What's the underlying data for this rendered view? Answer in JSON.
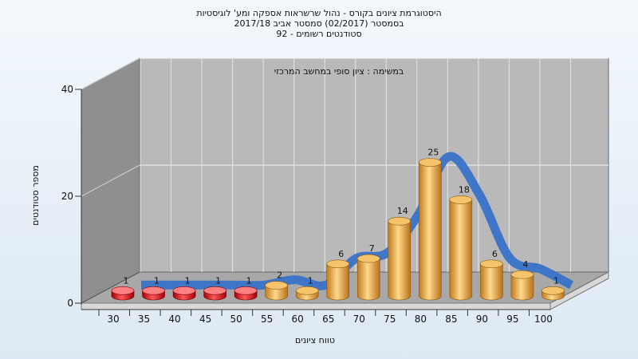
{
  "chart_data": {
    "type": "bar",
    "title_lines": [
      "היסטוגרמת ציונים בקורס - נהול שרשראות אספקה ומע' לוגיסטיות",
      "בסמסטר  (02/2017)  סמסטר אביב 2017/18",
      "סטודנטים רשומים - 92"
    ],
    "annotation": "במשימה : ציון סופי במחשב המרכזי",
    "xlabel": "טווח ציונים",
    "ylabel": "מספר סטודנטים",
    "categories": [
      "30",
      "35",
      "40",
      "45",
      "50",
      "55",
      "60",
      "65",
      "70",
      "75",
      "80",
      "85",
      "90",
      "95",
      "100"
    ],
    "values": [
      1,
      1,
      1,
      1,
      1,
      2,
      1,
      6,
      7,
      14,
      25,
      18,
      6,
      4,
      1
    ],
    "failing_categories": [
      "30",
      "35",
      "40",
      "45",
      "50"
    ],
    "yticks": [
      0,
      20,
      40
    ],
    "ylim": [
      0,
      40
    ],
    "trend_line": true,
    "colors": {
      "fail_bar": "#d8101a",
      "pass_bar": "#e8a848",
      "trend": "#3872c8",
      "back_wall": "#b9b9b9",
      "side_wall": "#8f8f8f",
      "floor": "#a8a8a8"
    }
  }
}
